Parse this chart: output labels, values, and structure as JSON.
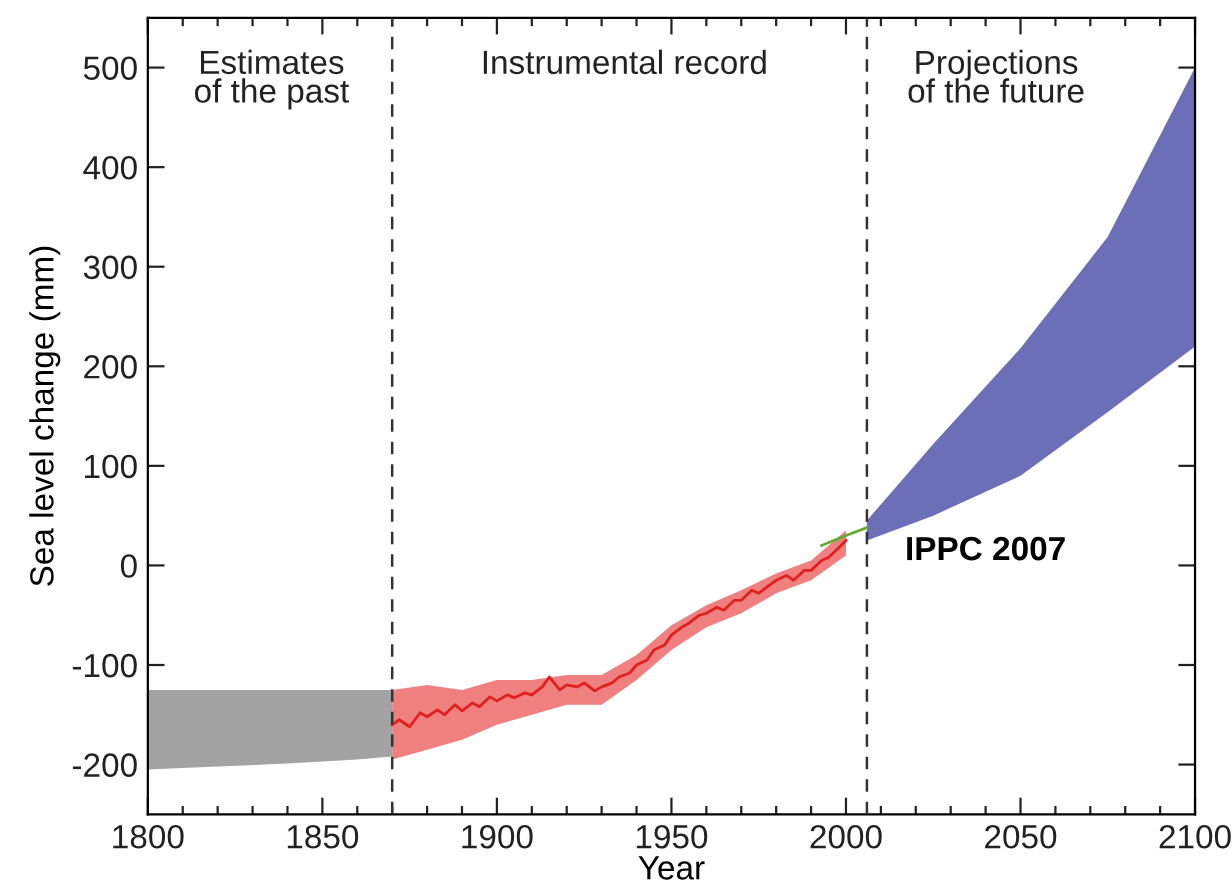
{
  "chart_data": {
    "type": "line",
    "xlabel": "Year",
    "ylabel": "Sea level change (mm)",
    "xlim": [
      1800,
      2100
    ],
    "ylim": [
      -250,
      550
    ],
    "xticks": [
      1800,
      {
        "value": 1810,
        "label": null
      },
      {
        "value": 1820,
        "label": null
      },
      {
        "value": 1830,
        "label": null
      },
      {
        "value": 1840,
        "label": null
      },
      1850,
      {
        "value": 1860,
        "label": null
      },
      {
        "value": 1870,
        "label": null
      },
      {
        "value": 1880,
        "label": null
      },
      {
        "value": 1890,
        "label": null
      },
      1900,
      {
        "value": 1910,
        "label": null
      },
      {
        "value": 1920,
        "label": null
      },
      {
        "value": 1930,
        "label": null
      },
      {
        "value": 1940,
        "label": null
      },
      1950,
      {
        "value": 1960,
        "label": null
      },
      {
        "value": 1970,
        "label": null
      },
      {
        "value": 1980,
        "label": null
      },
      {
        "value": 1990,
        "label": null
      },
      2000,
      {
        "value": 2010,
        "label": null
      },
      {
        "value": 2020,
        "label": null
      },
      {
        "value": 2030,
        "label": null
      },
      {
        "value": 2040,
        "label": null
      },
      2050,
      {
        "value": 2060,
        "label": null
      },
      {
        "value": 2070,
        "label": null
      },
      {
        "value": 2080,
        "label": null
      },
      {
        "value": 2090,
        "label": null
      },
      2100
    ],
    "yticks": [
      -200,
      -100,
      0,
      100,
      200,
      300,
      400,
      500
    ],
    "series": [
      {
        "color": "#a3a3a3",
        "x": [
          1800,
          1820,
          1840,
          1860,
          1870
        ],
        "values": [
          null,
          null,
          null,
          null,
          null
        ],
        "lower": [
          -205,
          -202,
          -199,
          -195,
          -192
        ],
        "upper": [
          -125,
          -125,
          -125,
          -125,
          -125
        ]
      },
      {
        "color": "#f08080",
        "x": [
          1870,
          1880,
          1890,
          1900,
          1910,
          1920,
          1930,
          1940,
          1950,
          1960,
          1970,
          1980,
          1990,
          2000
        ],
        "values": [
          null,
          null,
          null,
          null,
          null,
          null,
          null,
          null,
          null,
          null,
          null,
          null,
          null,
          null
        ],
        "lower": [
          -195,
          -185,
          -175,
          -160,
          -150,
          -140,
          -140,
          -115,
          -85,
          -62,
          -48,
          -28,
          -15,
          10
        ],
        "upper": [
          -125,
          -120,
          -125,
          -115,
          -115,
          -110,
          -110,
          -90,
          -60,
          -40,
          -25,
          -8,
          5,
          35
        ]
      },
      {
        "color": "#e0201c",
        "x": [
          1870,
          1872,
          1875,
          1878,
          1880,
          1883,
          1885,
          1888,
          1890,
          1893,
          1895,
          1898,
          1900,
          1903,
          1905,
          1908,
          1910,
          1913,
          1915,
          1918,
          1920,
          1923,
          1925,
          1928,
          1930,
          1933,
          1935,
          1938,
          1940,
          1943,
          1945,
          1948,
          1950,
          1953,
          1955,
          1958,
          1960,
          1963,
          1965,
          1968,
          1970,
          1973,
          1975,
          1978,
          1980,
          1983,
          1985,
          1988,
          1990,
          1993,
          1995,
          1998,
          2000
        ],
        "values": [
          -160,
          -155,
          -162,
          -148,
          -152,
          -145,
          -150,
          -140,
          -146,
          -138,
          -142,
          -132,
          -136,
          -130,
          -133,
          -128,
          -130,
          -122,
          -112,
          -125,
          -120,
          -122,
          -118,
          -126,
          -122,
          -118,
          -112,
          -108,
          -100,
          -95,
          -85,
          -80,
          -70,
          -62,
          -58,
          -50,
          -48,
          -42,
          -45,
          -35,
          -35,
          -25,
          -28,
          -20,
          -15,
          -10,
          -15,
          -5,
          -5,
          5,
          8,
          18,
          25
        ]
      },
      {
        "color": "#66aa33",
        "x": [
          1993,
          2000,
          2006
        ],
        "values": [
          20,
          30,
          38
        ]
      },
      {
        "color": "#6b6fb8",
        "x": [
          2006,
          2025,
          2050,
          2075,
          2100
        ],
        "values": [
          null,
          null,
          null,
          null,
          null
        ],
        "lower": [
          25,
          50,
          90,
          154,
          220
        ],
        "upper": [
          45,
          122,
          218,
          330,
          500
        ]
      }
    ],
    "ref_lines": [
      {
        "axis": "x",
        "value": 1870,
        "line_style": "dashed",
        "color": "#333333"
      },
      {
        "axis": "x",
        "value": 2006,
        "line_style": "dashed",
        "color": "#333333"
      }
    ],
    "annotations": [
      "Estimates\nof the past",
      "Instrumental record",
      "Projections\nof the future",
      "IPPC 2007"
    ]
  }
}
